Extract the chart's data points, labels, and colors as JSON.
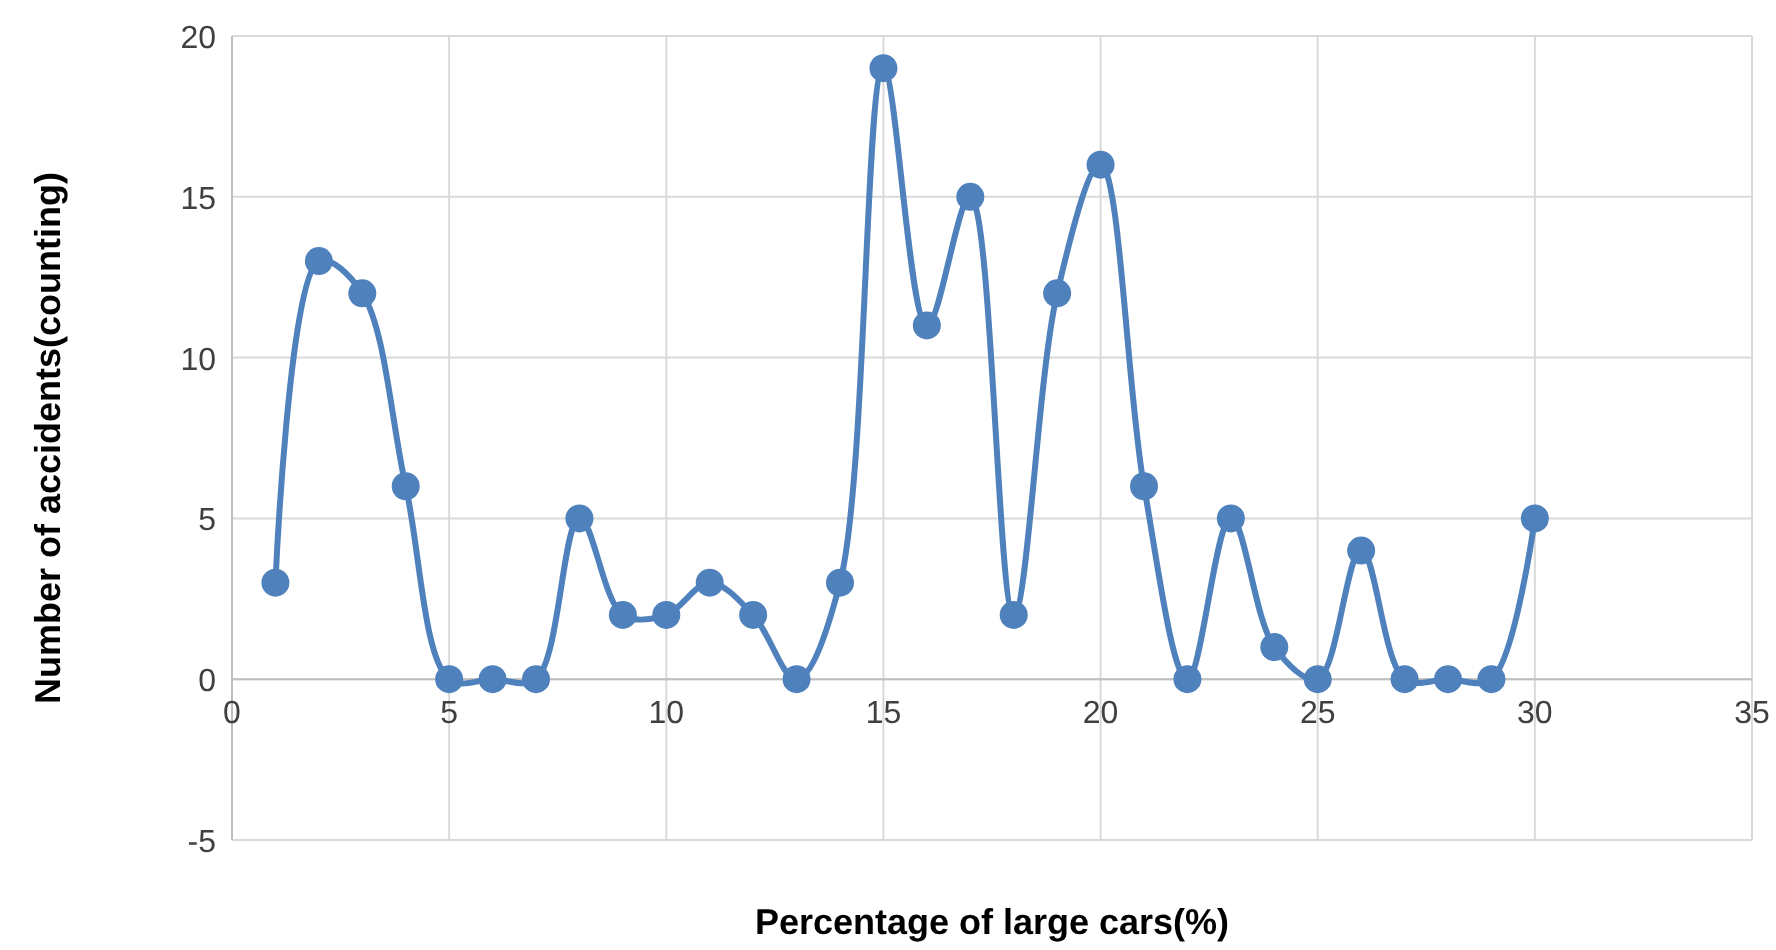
{
  "chart_data": {
    "type": "line",
    "xlabel": "Percentage of large cars(%)",
    "ylabel": "Number of accidents(counting)",
    "x": [
      1,
      2,
      3,
      4,
      5,
      6,
      7,
      8,
      9,
      10,
      11,
      12,
      13,
      14,
      15,
      16,
      17,
      18,
      19,
      20,
      21,
      22,
      23,
      24,
      25,
      26,
      27,
      28,
      29,
      30
    ],
    "series": [
      {
        "color": "#4f81bd",
        "values": [
          3,
          13,
          12,
          6,
          0,
          0,
          0,
          5,
          2,
          2,
          3,
          2,
          0,
          3,
          19,
          11,
          15,
          2,
          12,
          16,
          6,
          0,
          5,
          1,
          0,
          4,
          0,
          0,
          0,
          5
        ]
      }
    ],
    "xlim": [
      0,
      35
    ],
    "xticks": [
      0,
      5,
      10,
      15,
      20,
      25,
      30,
      35
    ],
    "ylim": [
      -5,
      20
    ],
    "yticks": [
      -5,
      0,
      5,
      10,
      15,
      20
    ],
    "grid": true,
    "marker": "circle",
    "line_style": "solid"
  }
}
